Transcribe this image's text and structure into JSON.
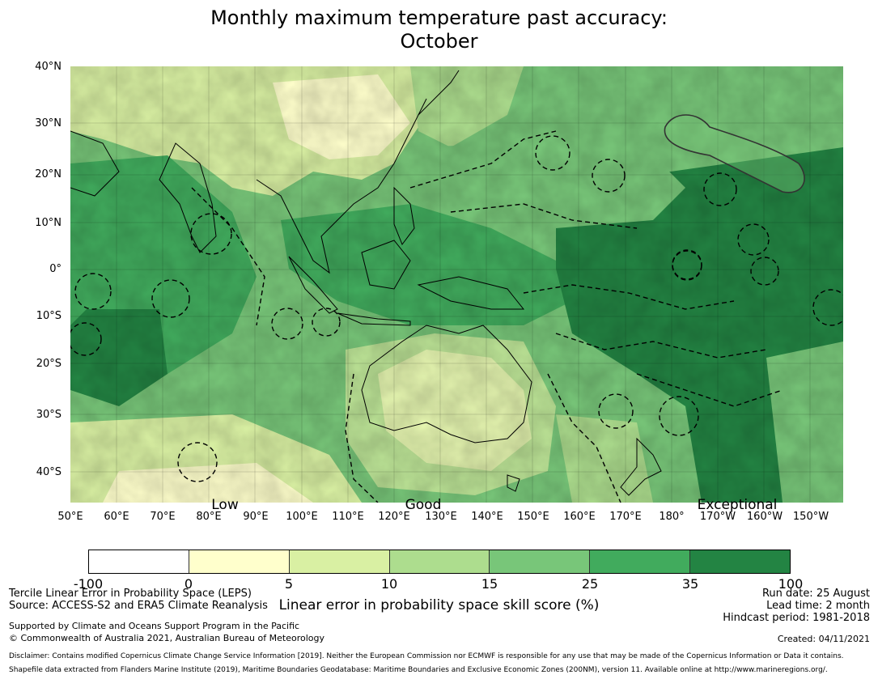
{
  "title": {
    "line1": "Monthly maximum temperature past accuracy:",
    "line2": "October"
  },
  "map": {
    "lat_labels": [
      "40°N",
      "30°N",
      "20°N",
      "10°N",
      "0°",
      "10°S",
      "20°S",
      "30°S",
      "40°S"
    ],
    "lon_labels": [
      "50°E",
      "60°E",
      "70°E",
      "80°E",
      "90°E",
      "100°E",
      "110°E",
      "120°E",
      "130°E",
      "140°E",
      "150°E",
      "160°E",
      "170°E",
      "180°",
      "170°W",
      "160°W",
      "150°W"
    ],
    "skill_labels": [
      "Low",
      "Good",
      "Exceptional"
    ]
  },
  "colorbar": {
    "colors": [
      "#ffffff",
      "#ffffcc",
      "#d9f0a3",
      "#addd8e",
      "#78c679",
      "#41ab5d",
      "#238443"
    ],
    "ticks": [
      "-100",
      "0",
      "5",
      "10",
      "15",
      "25",
      "35",
      "100"
    ],
    "label": "Linear error in probability space skill score (%)"
  },
  "footer": {
    "method": "Tercile Linear Error in Probability Space (LEPS)",
    "source": "Source: ACCESS-S2 and ERA5 Climate Reanalysis",
    "support": "Supported by Climate and Oceans Support Program in the Pacific",
    "copyright": "© Commonwealth of Australia 2021, Australian Bureau of Meteorology",
    "run_date": "Run date: 25 August",
    "lead_time": "Lead time: 2 month",
    "hindcast": "Hindcast period: 1981-2018",
    "created": "Created: 04/11/2021",
    "disclaimer": "Disclaimer: Contains modified Copernicus Climate Change Service Information [2019]. Neither the European Commission nor ECMWF is responsible for any use that may be made of the Copernicus Information or Data it contains.",
    "shapefile": "Shapefile data extracted from Flanders Marine Institute (2019), Maritime Boundaries Geodatabase: Maritime Boundaries and Exclusive Economic Zones (200NM), version 11. Available online at http://www.marineregions.org/."
  }
}
